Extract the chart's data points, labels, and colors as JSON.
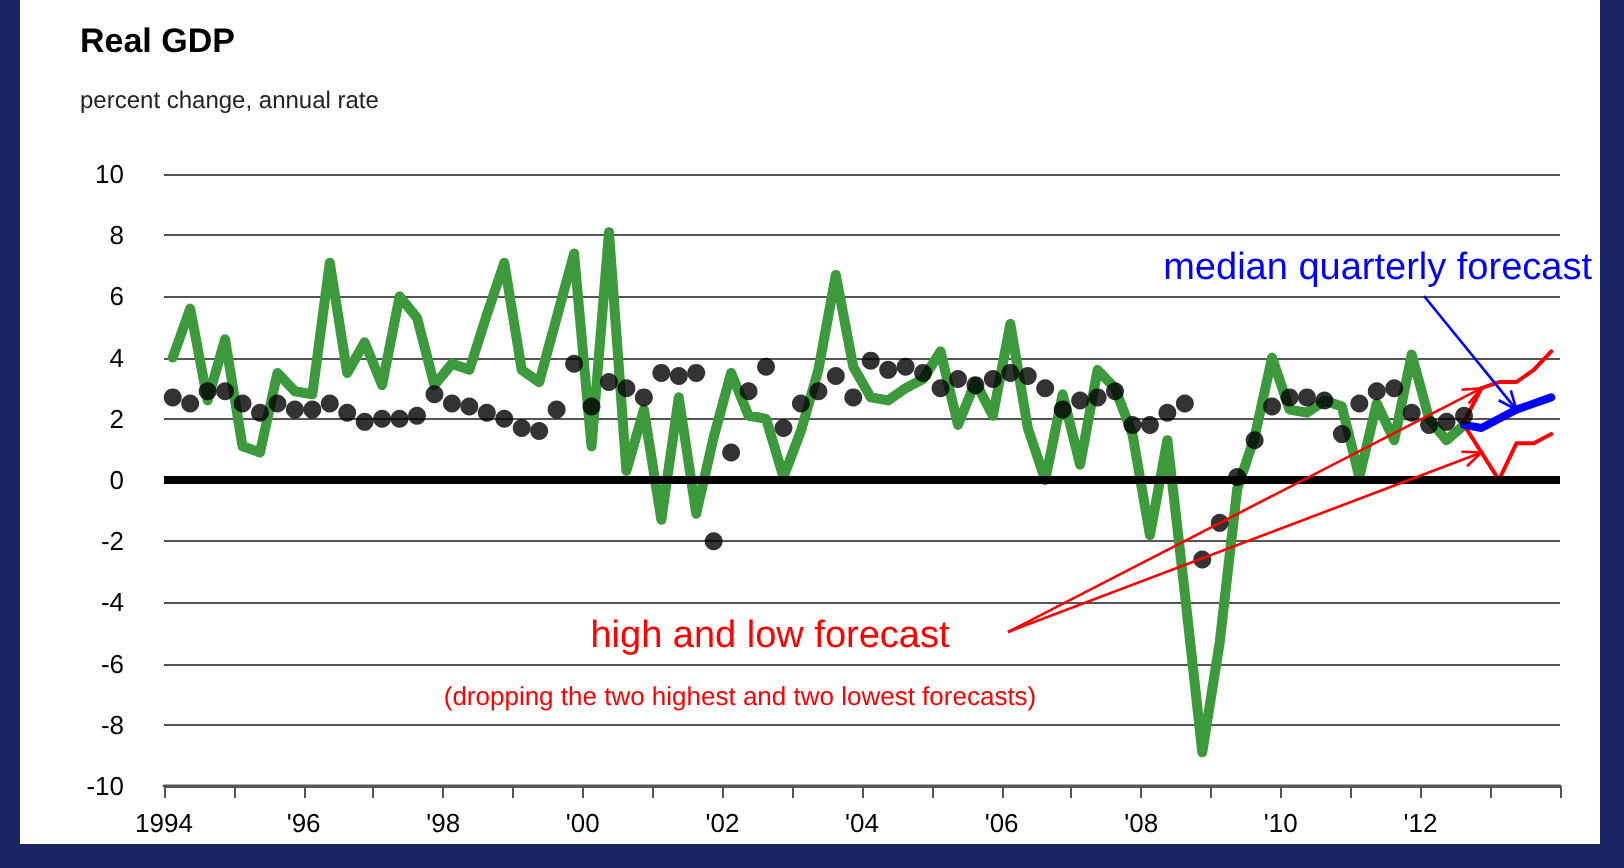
{
  "chart_data": {
    "type": "line",
    "title": "Real GDP",
    "subtitle": "percent change, annual rate",
    "xlim": [
      1994,
      2014
    ],
    "xticks": [
      {
        "value": 1994,
        "label": "1994"
      },
      {
        "value": 1995,
        "label": null
      },
      {
        "value": 1996,
        "label": "'96"
      },
      {
        "value": 1997,
        "label": null
      },
      {
        "value": 1998,
        "label": "'98"
      },
      {
        "value": 1999,
        "label": null
      },
      {
        "value": 2000,
        "label": "'00"
      },
      {
        "value": 2001,
        "label": null
      },
      {
        "value": 2002,
        "label": "'02"
      },
      {
        "value": 2003,
        "label": null
      },
      {
        "value": 2004,
        "label": "'04"
      },
      {
        "value": 2005,
        "label": null
      },
      {
        "value": 2006,
        "label": "'06"
      },
      {
        "value": 2007,
        "label": null
      },
      {
        "value": 2008,
        "label": "'08"
      },
      {
        "value": 2009,
        "label": null
      },
      {
        "value": 2010,
        "label": "'10"
      },
      {
        "value": 2011,
        "label": null
      },
      {
        "value": 2012,
        "label": "'12"
      },
      {
        "value": 2013,
        "label": null
      },
      {
        "value": 2014,
        "label": null
      }
    ],
    "ylim": [
      -10,
      10
    ],
    "yticks": [
      -10,
      -8,
      -6,
      -4,
      -2,
      0,
      2,
      4,
      6,
      8,
      10
    ],
    "grid": "y",
    "marker": "none",
    "ref_lines": [
      {
        "axis": "y",
        "value": 0,
        "color": "#000000"
      }
    ],
    "annotations": [
      {
        "text": "median quarterly forecast",
        "x": 2013.375,
        "y": 2.3
      },
      "high and low forecast",
      "(dropping the two highest and two lowest forecasts)"
    ],
    "x": [
      1994.125,
      1994.375,
      1994.625,
      1994.875,
      1995.125,
      1995.375,
      1995.625,
      1995.875,
      1996.125,
      1996.375,
      1996.625,
      1996.875,
      1997.125,
      1997.375,
      1997.625,
      1997.875,
      1998.125,
      1998.375,
      1998.625,
      1998.875,
      1999.125,
      1999.375,
      1999.625,
      1999.875,
      2000.125,
      2000.375,
      2000.625,
      2000.875,
      2001.125,
      2001.375,
      2001.625,
      2001.875,
      2002.125,
      2002.375,
      2002.625,
      2002.875,
      2003.125,
      2003.375,
      2003.625,
      2003.875,
      2004.125,
      2004.375,
      2004.625,
      2004.875,
      2005.125,
      2005.375,
      2005.625,
      2005.875,
      2006.125,
      2006.375,
      2006.625,
      2006.875,
      2007.125,
      2007.375,
      2007.625,
      2007.875,
      2008.125,
      2008.375,
      2008.625,
      2008.875,
      2009.125,
      2009.375,
      2009.625,
      2009.875,
      2010.125,
      2010.375,
      2010.625,
      2010.875,
      2011.125,
      2011.375,
      2011.625,
      2011.875,
      2012.125,
      2012.375,
      2012.625
    ],
    "series": [
      {
        "color": "#3c9a3c",
        "values": [
          4.0,
          5.6,
          2.6,
          4.6,
          1.1,
          0.9,
          3.5,
          2.9,
          2.8,
          7.1,
          3.5,
          4.5,
          3.1,
          6.0,
          5.3,
          3.1,
          3.8,
          3.6,
          5.4,
          7.1,
          3.6,
          3.2,
          5.3,
          7.4,
          1.1,
          8.1,
          0.3,
          2.3,
          -1.3,
          2.7,
          -1.1,
          1.4,
          3.5,
          2.1,
          2.0,
          0.1,
          1.6,
          3.6,
          6.7,
          3.7,
          2.7,
          2.6,
          3.0,
          3.3,
          4.2,
          1.8,
          3.2,
          2.1,
          5.1,
          1.7,
          0.0,
          2.8,
          0.5,
          3.6,
          3.0,
          1.5,
          -1.8,
          1.3,
          -3.7,
          -8.9,
          -5.3,
          -0.3,
          1.4,
          4.0,
          2.3,
          2.2,
          2.6,
          2.4,
          0.1,
          2.5,
          1.3,
          4.1,
          2.0,
          1.3,
          1.8
        ]
      },
      {
        "type": "scatter",
        "marker": "circle",
        "color": "#000000",
        "values": [
          2.7,
          2.5,
          2.9,
          2.9,
          2.5,
          2.2,
          2.5,
          2.3,
          2.3,
          2.5,
          2.2,
          1.9,
          2.0,
          2.0,
          2.1,
          2.8,
          2.5,
          2.4,
          2.2,
          2.0,
          1.7,
          1.6,
          2.3,
          3.8,
          2.4,
          3.2,
          3.0,
          2.7,
          3.5,
          3.4,
          3.5,
          -2.0,
          0.9,
          2.9,
          3.7,
          1.7,
          2.5,
          2.9,
          3.4,
          2.7,
          3.9,
          3.6,
          3.7,
          3.5,
          3.0,
          3.3,
          3.1,
          3.3,
          3.5,
          3.4,
          3.0,
          2.3,
          2.6,
          2.7,
          2.9,
          1.8,
          1.8,
          2.2,
          2.5,
          -2.6,
          -1.4,
          0.1,
          1.3,
          2.4,
          2.7,
          2.7,
          2.6,
          1.5,
          2.5,
          2.9,
          3.0,
          2.2,
          1.8,
          1.9,
          2.1
        ]
      },
      {
        "color": "#ff0000",
        "x": [
          2012.625,
          2012.875,
          2013.125,
          2013.375,
          2013.625,
          2013.875
        ],
        "values": [
          1.9,
          3.0,
          3.2,
          3.2,
          3.6,
          4.2
        ]
      },
      {
        "color": "#ff0000",
        "x": [
          2012.625,
          2012.875,
          2013.125,
          2013.375,
          2013.625,
          2013.875
        ],
        "values": [
          1.8,
          0.9,
          0.0,
          1.2,
          1.2,
          1.5
        ]
      },
      {
        "color": "#0000ff",
        "x": [
          2012.625,
          2012.875,
          2013.125,
          2013.375,
          2013.625,
          2013.875
        ],
        "values": [
          1.8,
          1.7,
          2.0,
          2.3,
          2.5,
          2.7
        ]
      }
    ]
  }
}
